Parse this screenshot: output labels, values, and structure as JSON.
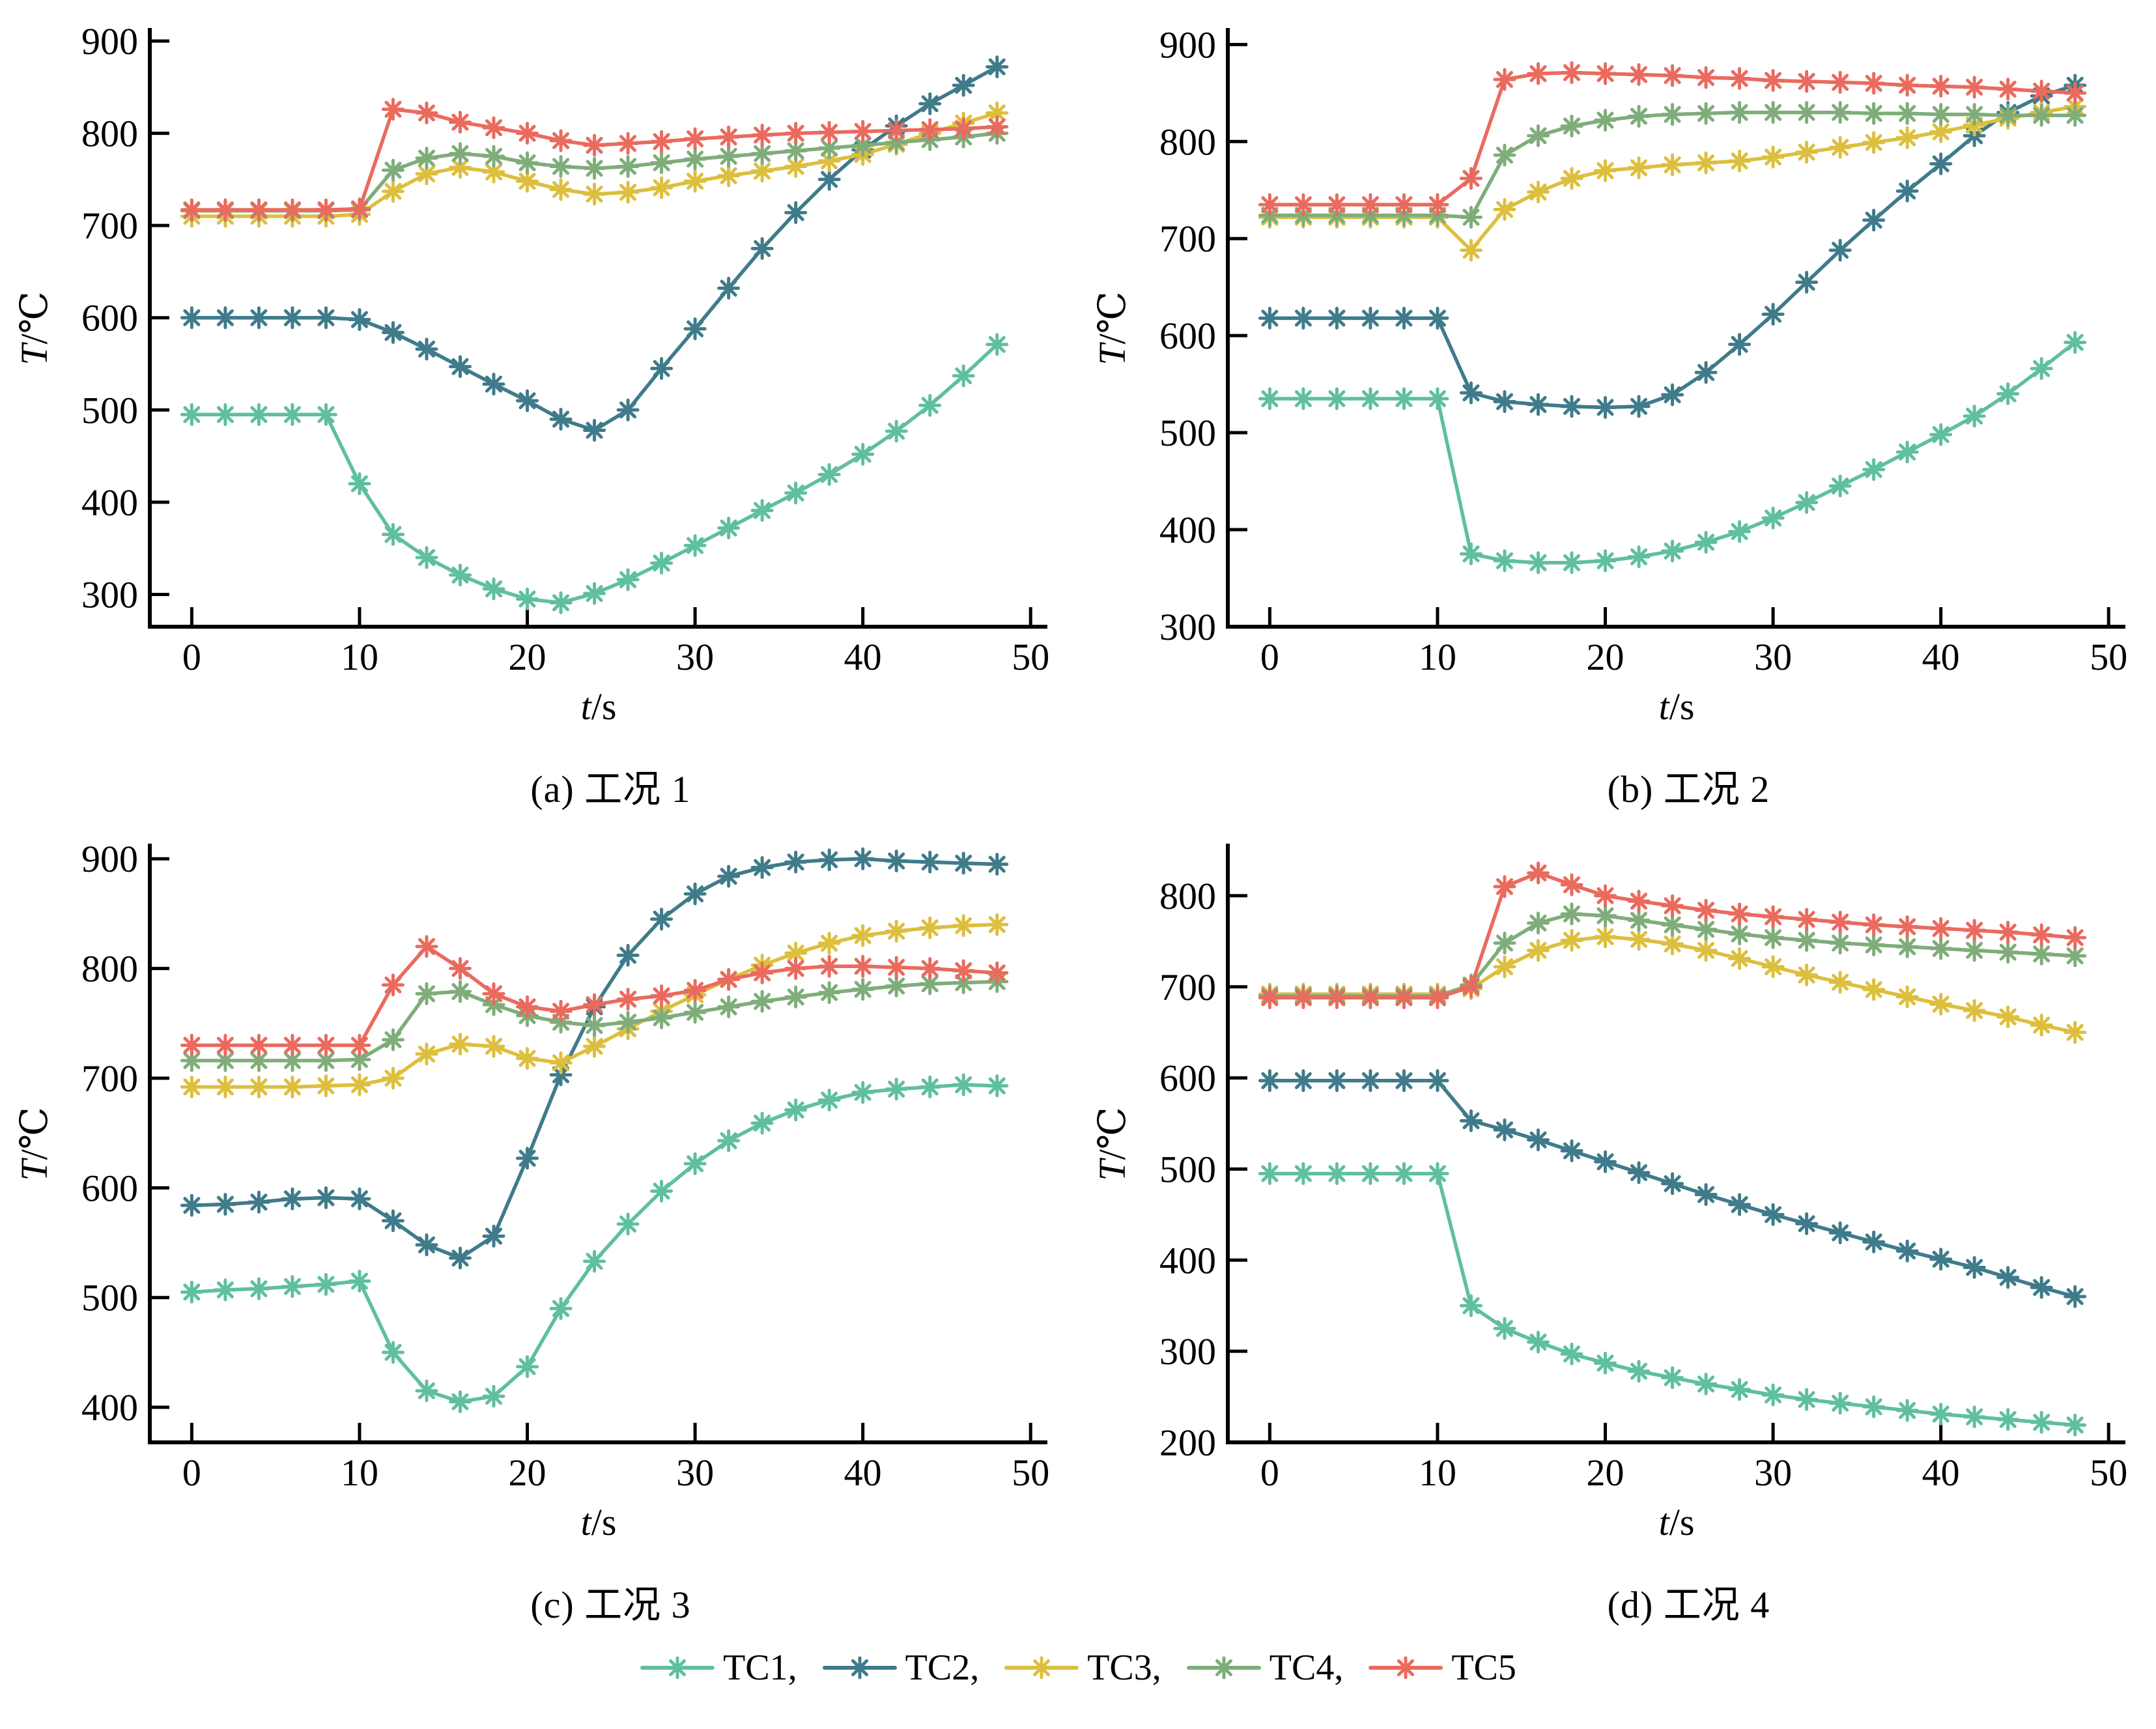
{
  "figure": {
    "background": "#ffffff",
    "axis_color": "#000000",
    "axis_labels": {
      "x_italic": "t",
      "x_rest": "/s",
      "y_italic": "T",
      "y_rest": "/℃"
    }
  },
  "legend": {
    "position": "bottom",
    "entries": [
      {
        "label": "TC1,",
        "series": "TC1",
        "color": "#5FBF9E"
      },
      {
        "label": "TC2,",
        "series": "TC2",
        "color": "#3F7B8A"
      },
      {
        "label": "TC3,",
        "series": "TC3",
        "color": "#DDBF3E"
      },
      {
        "label": "TC4,",
        "series": "TC4",
        "color": "#7FAD7A"
      },
      {
        "label": "TC5",
        "series": "TC5",
        "color": "#EA6A5E"
      }
    ]
  },
  "chart_data": {
    "type": "line",
    "marker": "asterisk",
    "grid": false,
    "xlabel": "t/s",
    "ylabel": "T/℃",
    "xlim": [
      -2.5,
      51
    ],
    "xticks": [
      0,
      10,
      20,
      30,
      40,
      50
    ],
    "x_values": [
      0,
      2,
      4,
      6,
      8,
      10,
      12,
      14,
      16,
      18,
      20,
      22,
      24,
      26,
      28,
      30,
      32,
      34,
      36,
      38,
      40,
      42,
      44,
      46,
      48
    ],
    "charts": [
      {
        "id": "a",
        "caption": "(a)  工况 1",
        "ylim": [
          265,
          912
        ],
        "yticks": [
          300,
          400,
          500,
          600,
          700,
          800,
          900
        ],
        "series": [
          {
            "name": "TC1",
            "color": "#5FBF9E",
            "values": [
              495,
              495,
              495,
              495,
              495,
              420,
              365,
              340,
              321,
              306,
              295,
              291,
              301,
              316,
              334,
              353,
              372,
              391,
              410,
              430,
              452,
              477,
              505,
              537,
              571
            ]
          },
          {
            "name": "TC2",
            "color": "#3F7B8A",
            "values": [
              600,
              600,
              600,
              600,
              600,
              598,
              584,
              566,
              547,
              528,
              510,
              490,
              478,
              500,
              545,
              588,
              632,
              675,
              714,
              750,
              782,
              808,
              832,
              852,
              872
            ]
          },
          {
            "name": "TC3",
            "color": "#DDBF3E",
            "values": [
              710,
              710,
              710,
              710,
              710,
              712,
              737,
              756,
              763,
              758,
              748,
              739,
              734,
              736,
              741,
              748,
              754,
              759,
              764,
              770,
              777,
              788,
              800,
              811,
              822
            ]
          },
          {
            "name": "TC4",
            "color": "#7FAD7A",
            "values": [
              716,
              716,
              716,
              716,
              716,
              717,
              760,
              773,
              778,
              775,
              768,
              764,
              762,
              764,
              768,
              772,
              775,
              778,
              781,
              784,
              787,
              790,
              793,
              796,
              800
            ]
          },
          {
            "name": "TC5",
            "color": "#EA6A5E",
            "values": [
              717,
              717,
              717,
              717,
              717,
              718,
              826,
              822,
              812,
              806,
              800,
              792,
              787,
              789,
              791,
              794,
              796,
              798,
              800,
              801,
              802,
              803,
              804,
              805,
              807
            ]
          }
        ]
      },
      {
        "id": "b",
        "caption": "(b)  工况 2",
        "ylim": [
          300,
          915
        ],
        "yticks": [
          300,
          400,
          500,
          600,
          700,
          800,
          900
        ],
        "series": [
          {
            "name": "TC1",
            "color": "#5FBF9E",
            "values": [
              535,
              535,
              535,
              535,
              535,
              535,
              375,
              368,
              366,
              366,
              368,
              372,
              378,
              387,
              398,
              412,
              428,
              445,
              462,
              480,
              498,
              517,
              540,
              566,
              593
            ]
          },
          {
            "name": "TC2",
            "color": "#3F7B8A",
            "values": [
              618,
              618,
              618,
              618,
              618,
              618,
              541,
              532,
              529,
              527,
              526,
              527,
              539,
              562,
              591,
              622,
              655,
              688,
              719,
              749,
              777,
              806,
              830,
              847,
              858
            ]
          },
          {
            "name": "TC3",
            "color": "#DDBF3E",
            "values": [
              722,
              722,
              722,
              722,
              722,
              722,
              688,
              730,
              748,
              762,
              770,
              773,
              776,
              778,
              780,
              784,
              789,
              794,
              799,
              804,
              810,
              817,
              824,
              830,
              836
            ]
          },
          {
            "name": "TC4",
            "color": "#7FAD7A",
            "values": [
              724,
              724,
              724,
              724,
              724,
              724,
              722,
              786,
              806,
              816,
              822,
              826,
              828,
              829,
              830,
              830,
              830,
              830,
              829,
              829,
              828,
              828,
              827,
              827,
              827
            ]
          },
          {
            "name": "TC5",
            "color": "#EA6A5E",
            "values": [
              735,
              735,
              735,
              735,
              735,
              735,
              762,
              864,
              870,
              871,
              870,
              869,
              868,
              866,
              865,
              863,
              862,
              861,
              860,
              858,
              857,
              856,
              854,
              852,
              850
            ]
          }
        ]
      },
      {
        "id": "c",
        "caption": "(c)  工况 3",
        "ylim": [
          368,
          912
        ],
        "yticks": [
          400,
          500,
          600,
          700,
          800,
          900
        ],
        "series": [
          {
            "name": "TC1",
            "color": "#5FBF9E",
            "values": [
              505,
              507,
              508,
              510,
              512,
              515,
              450,
              415,
              405,
              410,
              437,
              490,
              533,
              567,
              597,
              622,
              643,
              659,
              671,
              680,
              687,
              690,
              692,
              694,
              693
            ]
          },
          {
            "name": "TC2",
            "color": "#3F7B8A",
            "values": [
              584,
              585,
              587,
              590,
              591,
              590,
              570,
              548,
              536,
              556,
              627,
              703,
              765,
              812,
              845,
              868,
              884,
              892,
              897,
              899,
              900,
              898,
              897,
              896,
              895
            ]
          },
          {
            "name": "TC3",
            "color": "#DDBF3E",
            "values": [
              692,
              692,
              692,
              692,
              693,
              694,
              700,
              722,
              731,
              729,
              718,
              714,
              729,
              745,
              761,
              776,
              790,
              803,
              814,
              823,
              830,
              834,
              837,
              839,
              840
            ]
          },
          {
            "name": "TC4",
            "color": "#7FAD7A",
            "values": [
              716,
              716,
              716,
              716,
              716,
              717,
              735,
              777,
              779,
              767,
              757,
              751,
              748,
              751,
              755,
              760,
              765,
              770,
              774,
              778,
              781,
              784,
              786,
              787,
              788
            ]
          },
          {
            "name": "TC5",
            "color": "#EA6A5E",
            "values": [
              730,
              730,
              730,
              730,
              730,
              730,
              785,
              820,
              800,
              777,
              765,
              761,
              767,
              772,
              775,
              780,
              790,
              796,
              800,
              802,
              802,
              801,
              800,
              798,
              796
            ]
          }
        ]
      },
      {
        "id": "d",
        "caption": "(d)  工况 4",
        "ylim": [
          200,
          855
        ],
        "yticks": [
          200,
          300,
          400,
          500,
          600,
          700,
          800
        ],
        "series": [
          {
            "name": "TC1",
            "color": "#5FBF9E",
            "values": [
              495,
              495,
              495,
              495,
              495,
              495,
              350,
              325,
              310,
              297,
              287,
              278,
              271,
              264,
              258,
              252,
              247,
              243,
              239,
              235,
              231,
              228,
              225,
              222,
              219
            ]
          },
          {
            "name": "TC2",
            "color": "#3F7B8A",
            "values": [
              597,
              597,
              597,
              597,
              597,
              597,
              553,
              543,
              532,
              520,
              508,
              496,
              484,
              472,
              461,
              450,
              440,
              430,
              420,
              410,
              401,
              392,
              381,
              370,
              360
            ]
          },
          {
            "name": "TC3",
            "color": "#DDBF3E",
            "values": [
              692,
              692,
              692,
              692,
              692,
              692,
              698,
              722,
              740,
              751,
              755,
              752,
              747,
              740,
              731,
              722,
              713,
              705,
              697,
              689,
              681,
              674,
              667,
              658,
              650
            ]
          },
          {
            "name": "TC4",
            "color": "#7FAD7A",
            "values": [
              690,
              690,
              690,
              690,
              690,
              690,
              702,
              748,
              770,
              780,
              778,
              773,
              768,
              763,
              758,
              754,
              751,
              748,
              746,
              744,
              742,
              740,
              738,
              736,
              734
            ]
          },
          {
            "name": "TC5",
            "color": "#EA6A5E",
            "values": [
              688,
              688,
              688,
              688,
              688,
              688,
              700,
              810,
              825,
              812,
              800,
              794,
              789,
              784,
              780,
              777,
              774,
              771,
              768,
              766,
              764,
              762,
              760,
              757,
              754
            ]
          }
        ]
      }
    ]
  }
}
